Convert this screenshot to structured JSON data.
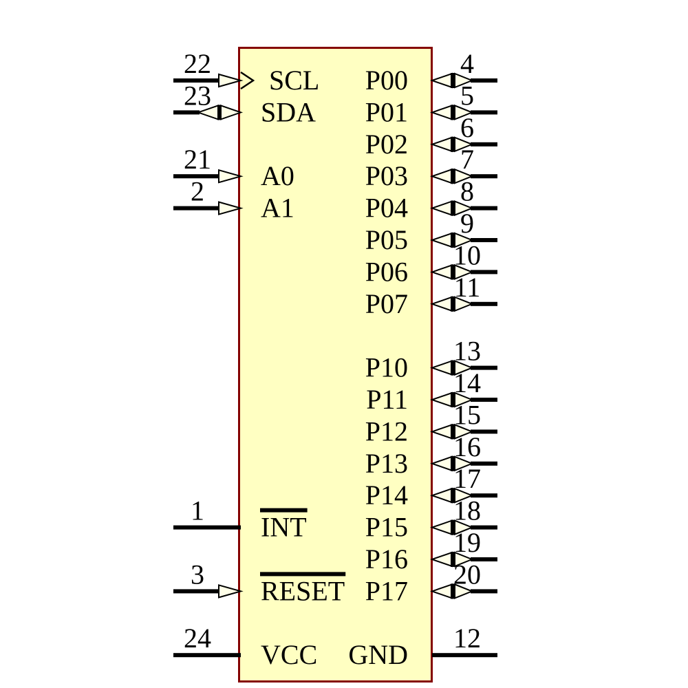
{
  "component": {
    "kind": "ic-schematic-symbol",
    "body_fill": "#FFFFC2",
    "body_border_color": "#840000",
    "arrow_fill": "#FFFFE8",
    "line_color": "#000000"
  },
  "pins": {
    "left": [
      {
        "number": "22",
        "name": "SCL",
        "row": 0,
        "shape": "input-clock",
        "overline": false
      },
      {
        "number": "23",
        "name": "SDA",
        "row": 1,
        "shape": "bidirectional",
        "overline": false
      },
      {
        "number": "21",
        "name": "A0",
        "row": 3,
        "shape": "input",
        "overline": false
      },
      {
        "number": "2",
        "name": "A1",
        "row": 4,
        "shape": "input",
        "overline": false
      },
      {
        "number": "1",
        "name": "INT",
        "row": 14,
        "shape": "line",
        "overline": true
      },
      {
        "number": "3",
        "name": "RESET",
        "row": 16,
        "shape": "input",
        "overline": true
      },
      {
        "number": "24",
        "name": "VCC",
        "row": 18,
        "shape": "line",
        "overline": false
      }
    ],
    "right": [
      {
        "number": "4",
        "name": "P00",
        "row": 0,
        "shape": "bidirectional",
        "overline": false
      },
      {
        "number": "5",
        "name": "P01",
        "row": 1,
        "shape": "bidirectional",
        "overline": false
      },
      {
        "number": "6",
        "name": "P02",
        "row": 2,
        "shape": "bidirectional",
        "overline": false
      },
      {
        "number": "7",
        "name": "P03",
        "row": 3,
        "shape": "bidirectional",
        "overline": false
      },
      {
        "number": "8",
        "name": "P04",
        "row": 4,
        "shape": "bidirectional",
        "overline": false
      },
      {
        "number": "9",
        "name": "P05",
        "row": 5,
        "shape": "bidirectional",
        "overline": false
      },
      {
        "number": "10",
        "name": "P06",
        "row": 6,
        "shape": "bidirectional",
        "overline": false
      },
      {
        "number": "11",
        "name": "P07",
        "row": 7,
        "shape": "bidirectional",
        "overline": false
      },
      {
        "number": "13",
        "name": "P10",
        "row": 9,
        "shape": "bidirectional",
        "overline": false
      },
      {
        "number": "14",
        "name": "P11",
        "row": 10,
        "shape": "bidirectional",
        "overline": false
      },
      {
        "number": "15",
        "name": "P12",
        "row": 11,
        "shape": "bidirectional",
        "overline": false
      },
      {
        "number": "16",
        "name": "P13",
        "row": 12,
        "shape": "bidirectional",
        "overline": false
      },
      {
        "number": "17",
        "name": "P14",
        "row": 13,
        "shape": "bidirectional",
        "overline": false
      },
      {
        "number": "18",
        "name": "P15",
        "row": 14,
        "shape": "bidirectional",
        "overline": false
      },
      {
        "number": "19",
        "name": "P16",
        "row": 15,
        "shape": "bidirectional",
        "overline": false
      },
      {
        "number": "20",
        "name": "P17",
        "row": 16,
        "shape": "bidirectional",
        "overline": false
      },
      {
        "number": "12",
        "name": "GND",
        "row": 18,
        "shape": "line",
        "overline": false
      }
    ]
  }
}
